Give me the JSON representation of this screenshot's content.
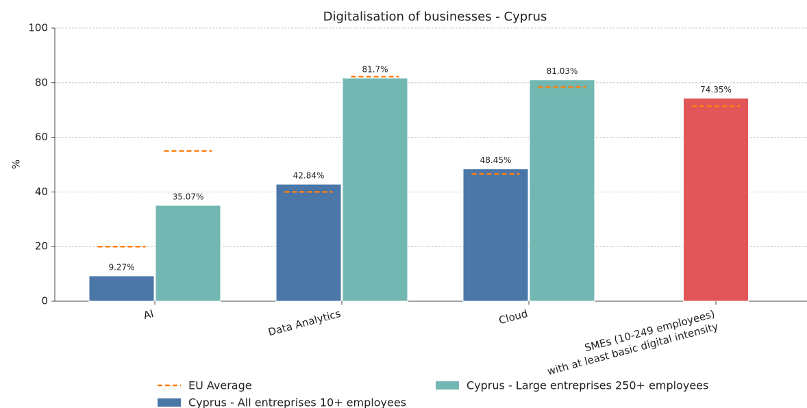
{
  "chart_data": {
    "type": "bar",
    "title": "Digitalisation of businesses - Cyprus",
    "y_label": "%",
    "categories": [
      "AI",
      "Data Analytics",
      "Cloud",
      "SMEs (10-249 employees)\nwith at least basic digital intensity"
    ],
    "series": [
      {
        "name": "Cyprus - All entreprises 10+ employees",
        "color": "#4a76a8",
        "values": [
          9.27,
          42.84,
          48.45,
          null
        ],
        "value_labels": [
          "9.27%",
          "42.84%",
          "48.45%",
          null
        ],
        "eu_average": [
          20,
          40,
          46.6,
          null
        ]
      },
      {
        "name": "Cyprus - Large entreprises 250+ employees",
        "color": "#72b7b2",
        "values": [
          35.07,
          81.7,
          81.03,
          null
        ],
        "value_labels": [
          "35.07%",
          "81.7%",
          "81.03%",
          null
        ],
        "eu_average": [
          55,
          82.2,
          78.4,
          null
        ]
      },
      {
        "color": "#e15759",
        "values": [
          null,
          null,
          null,
          74.35
        ],
        "value_labels": [
          null,
          null,
          null,
          "74.35%"
        ],
        "eu_average": [
          null,
          null,
          null,
          71.4
        ]
      }
    ],
    "eu_average_name": "EU Average",
    "eu_average_color": "#ff7f0e",
    "ylim": [
      0,
      100
    ],
    "yticks": [
      0,
      20,
      40,
      60,
      80,
      100
    ],
    "grid": true,
    "legend": "bottom"
  }
}
